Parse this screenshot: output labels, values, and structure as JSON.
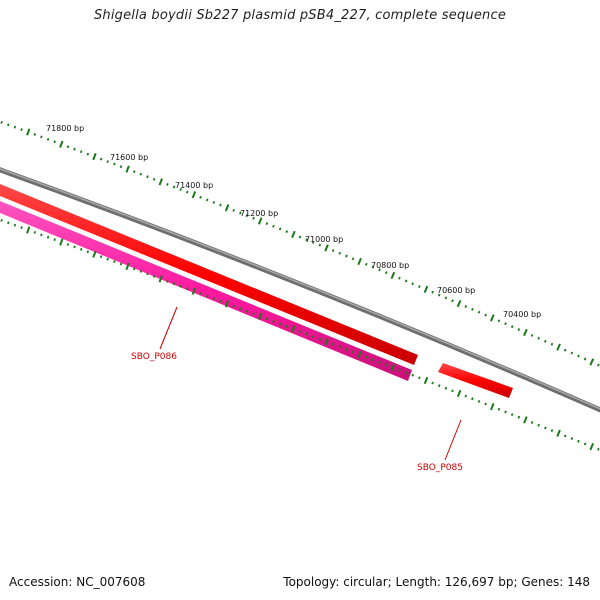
{
  "title": "Shigella boydii Sb227 plasmid pSB4_227, complete sequence",
  "accession": "Accession: NC_007608",
  "summary": "Topology: circular; Length: 126,697 bp; Genes: 148",
  "colors": {
    "backbone": "#8a8a8a",
    "gene_red": "#ff0000",
    "gene_magenta": "#ff1aa0",
    "tick_green": "#1a7a1a",
    "label_red": "#cc0000"
  },
  "ticks": [
    {
      "label": "71800 bp"
    },
    {
      "label": "71600 bp"
    },
    {
      "label": "71400 bp"
    },
    {
      "label": "71200 bp"
    },
    {
      "label": "71000 bp"
    },
    {
      "label": "70800 bp"
    },
    {
      "label": "70600 bp"
    },
    {
      "label": "70400 bp"
    }
  ],
  "genes": [
    {
      "name": "SBO_P086",
      "strand": "reverse"
    },
    {
      "name": "SBO_P085",
      "strand": "reverse"
    }
  ]
}
